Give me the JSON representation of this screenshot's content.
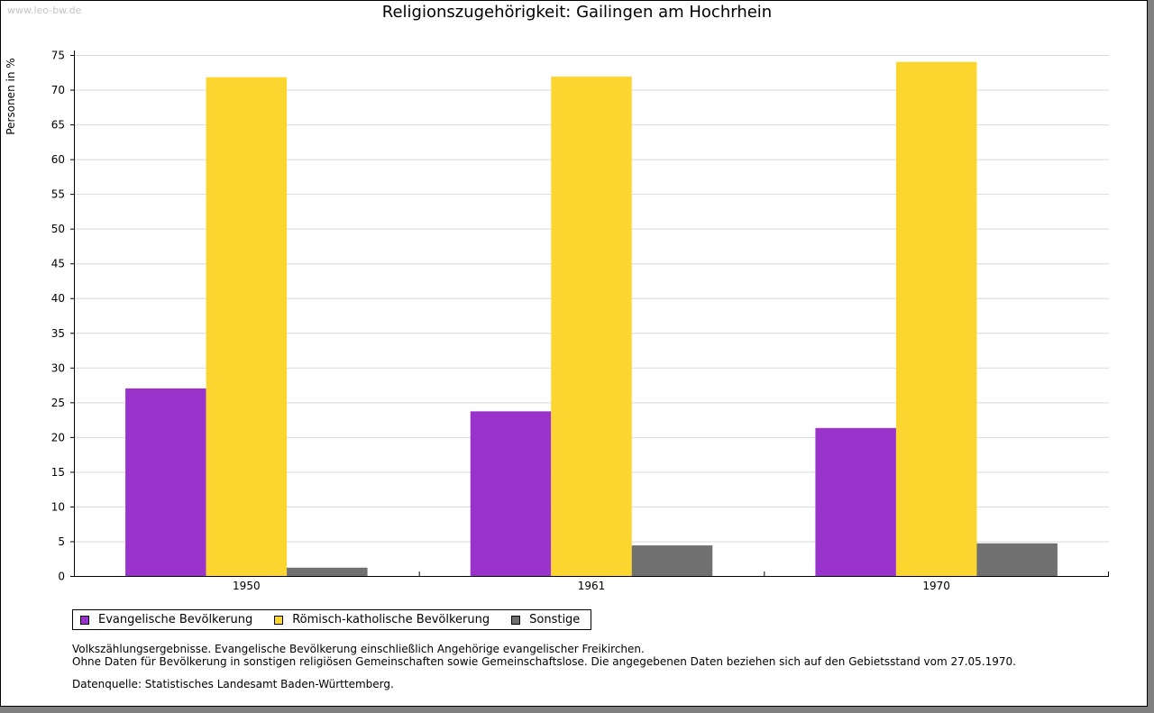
{
  "watermark": "www.leo-bw.de",
  "colors": {
    "evangelisch": "#9933cc",
    "katholisch": "#fcd62e",
    "sonstige": "#707070",
    "grid": "#d9d9d9",
    "axis": "#000000"
  },
  "legend": [
    {
      "label": "Evangelische Bevölkerung",
      "color": "#9933cc"
    },
    {
      "label": "Römisch-katholische Bevölkerung",
      "color": "#fcd62e"
    },
    {
      "label": "Sonstige",
      "color": "#707070"
    }
  ],
  "notes": {
    "line1": "Volkszählungsergebnisse. Evangelische Bevölkerung einschließlich Angehörige evangelischer Freikirchen.",
    "line2": "Ohne Daten für Bevölkerung in sonstigen religiösen Gemeinschaften sowie Gemeinschaftslose. Die angegebenen Daten beziehen sich auf den Gebietsstand vom 27.05.1970.",
    "source": "Datenquelle: Statistisches Landesamt Baden-Württemberg."
  },
  "chart_data": {
    "type": "bar",
    "title": "Religionszugehörigkeit: Gailingen am Hochrhein",
    "xlabel": "",
    "ylabel": "Personen in %",
    "ylim": [
      0,
      75
    ],
    "yticks": [
      0,
      5,
      10,
      15,
      20,
      25,
      30,
      35,
      40,
      45,
      50,
      55,
      60,
      65,
      70,
      75
    ],
    "grid": true,
    "categories": [
      "1950",
      "1961",
      "1970"
    ],
    "series": [
      {
        "name": "Evangelische Bevölkerung",
        "color": "#9933cc",
        "values": [
          27.0,
          23.7,
          21.3
        ]
      },
      {
        "name": "Römisch-katholische Bevölkerung",
        "color": "#fcd62e",
        "values": [
          71.8,
          71.9,
          74.0
        ]
      },
      {
        "name": "Sonstige",
        "color": "#707070",
        "values": [
          1.2,
          4.4,
          4.7
        ]
      }
    ]
  }
}
